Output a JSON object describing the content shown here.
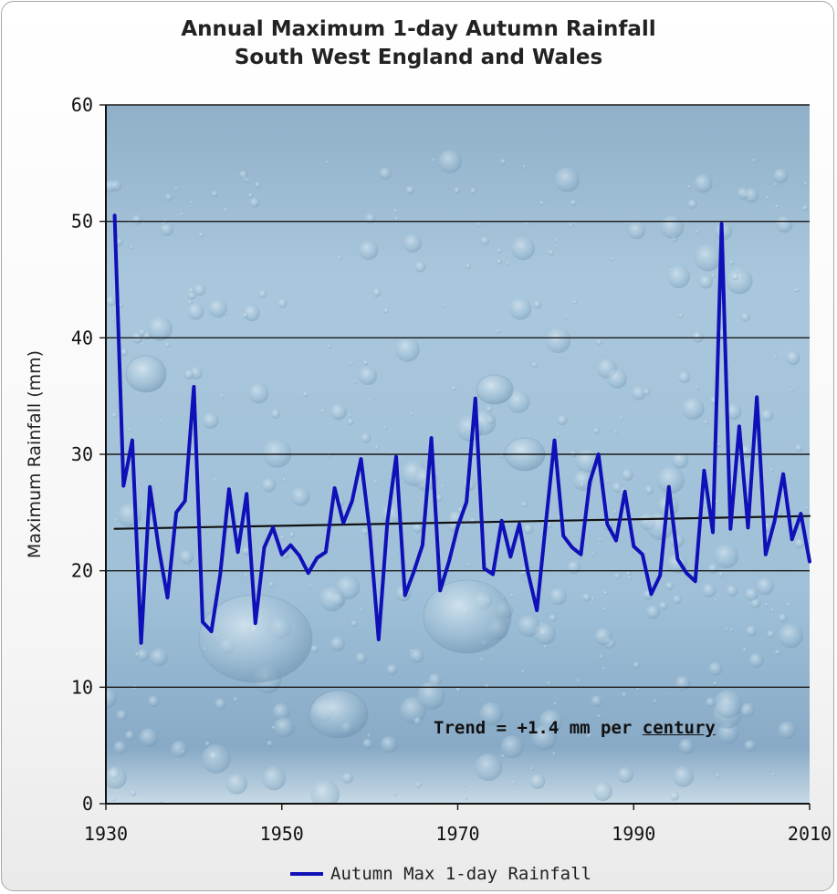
{
  "chart_data": {
    "type": "line",
    "title": "Annual Maximum 1-day Autumn Rainfall",
    "subtitle": "South West England and Wales",
    "ylabel": "Maximum Rainfall (mm)",
    "xlabel": "",
    "xlim": [
      1930,
      2010
    ],
    "ylim": [
      0,
      60
    ],
    "x_ticks": [
      "1930",
      "1950",
      "1970",
      "1990",
      "2010"
    ],
    "y_ticks": [
      "0",
      "10",
      "20",
      "30",
      "40",
      "50",
      "60"
    ],
    "grid": "horizontal",
    "legend_position": "bottom",
    "annotation": {
      "prefix": "Trend = +1.4 mm per ",
      "underlined": "century"
    },
    "series": [
      {
        "name": "Autumn Max 1-day Rainfall",
        "color": "#1010b8",
        "x": [
          1931,
          1932,
          1933,
          1934,
          1935,
          1936,
          1937,
          1938,
          1939,
          1940,
          1941,
          1942,
          1943,
          1944,
          1945,
          1946,
          1947,
          1948,
          1949,
          1950,
          1951,
          1952,
          1953,
          1954,
          1955,
          1956,
          1957,
          1958,
          1959,
          1960,
          1961,
          1962,
          1963,
          1964,
          1965,
          1966,
          1967,
          1968,
          1969,
          1970,
          1971,
          1972,
          1973,
          1974,
          1975,
          1976,
          1977,
          1978,
          1979,
          1980,
          1981,
          1982,
          1983,
          1984,
          1985,
          1986,
          1987,
          1988,
          1989,
          1990,
          1991,
          1992,
          1993,
          1994,
          1995,
          1996,
          1997,
          1998,
          1999,
          2000,
          2001,
          2002,
          2003,
          2004,
          2005,
          2006,
          2007,
          2008,
          2009,
          2010
        ],
        "values": [
          50.5,
          27.3,
          31.2,
          13.8,
          27.2,
          22.0,
          17.7,
          25.0,
          26.0,
          35.8,
          15.6,
          14.8,
          19.7,
          27.0,
          21.6,
          26.6,
          15.5,
          22.0,
          23.7,
          21.4,
          22.2,
          21.3,
          19.8,
          21.1,
          21.6,
          27.1,
          24.1,
          26.0,
          29.6,
          23.4,
          14.1,
          24.2,
          29.8,
          17.9,
          19.9,
          22.2,
          31.4,
          18.3,
          20.8,
          23.8,
          25.9,
          34.8,
          20.2,
          19.7,
          24.3,
          21.2,
          24.0,
          19.8,
          16.6,
          24.0,
          31.2,
          23.0,
          22.0,
          21.4,
          27.6,
          30.0,
          24.0,
          22.6,
          26.8,
          22.1,
          21.4,
          18.0,
          19.6,
          27.2,
          21.0,
          19.8,
          19.1,
          28.6,
          23.3,
          49.8,
          23.6,
          32.4,
          23.7,
          34.9,
          21.4,
          24.2,
          28.3,
          22.7,
          24.9,
          20.8
        ]
      },
      {
        "name": "",
        "color": "#111111",
        "x": [
          1931,
          2010
        ],
        "values": [
          23.6,
          24.7
        ]
      }
    ]
  }
}
